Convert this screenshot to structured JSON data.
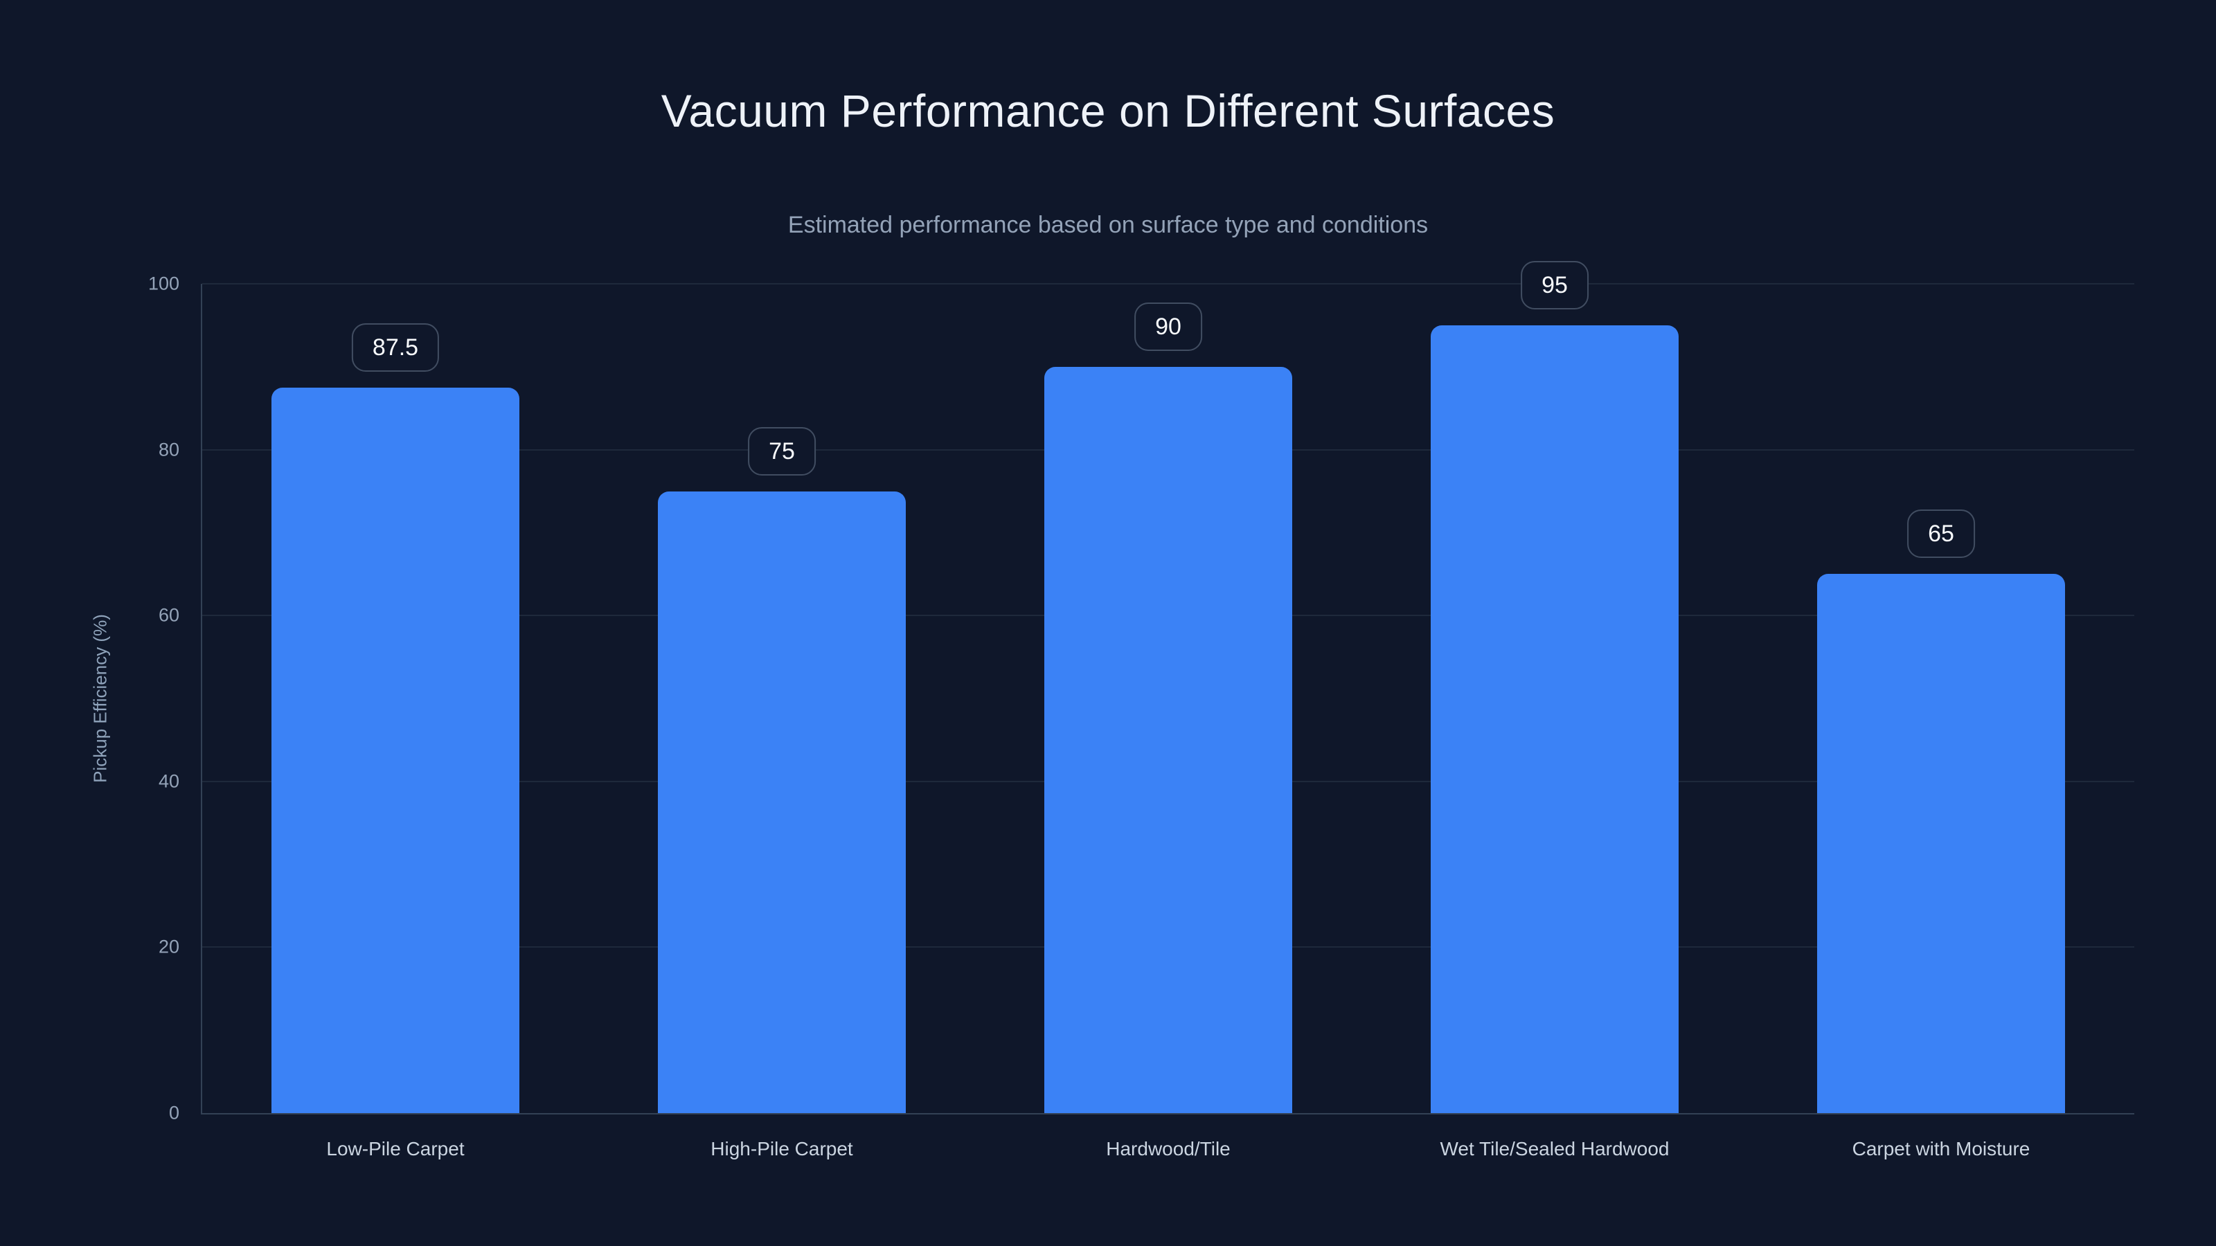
{
  "page": {
    "background_color": "#0f172a",
    "accent_color": "#3b82f6",
    "gridline_color": "#1e293b",
    "axis_line_color": "#334155",
    "badge_border_color": "#414d61"
  },
  "header": {
    "title": "Vacuum Performance on Different Surfaces",
    "subtitle": "Estimated performance based on surface type and conditions"
  },
  "chart_data": {
    "type": "bar",
    "title": "Vacuum Performance on Different Surfaces",
    "subtitle": "Estimated performance based on surface type and conditions",
    "categories": [
      "Low-Pile Carpet",
      "High-Pile Carpet",
      "Hardwood/Tile",
      "Wet Tile/Sealed Hardwood",
      "Carpet with Moisture"
    ],
    "values": [
      87.5,
      75,
      90,
      95,
      65
    ],
    "value_labels": [
      "87.5",
      "75",
      "90",
      "95",
      "65"
    ],
    "xlabel": "",
    "ylabel": "Pickup Efficiency (%)",
    "ylim": [
      0,
      100
    ],
    "yticks": [
      0,
      20,
      40,
      60,
      80,
      100
    ],
    "grid": "horizontal",
    "legend": "none",
    "bar_color": "#3b82f6"
  }
}
